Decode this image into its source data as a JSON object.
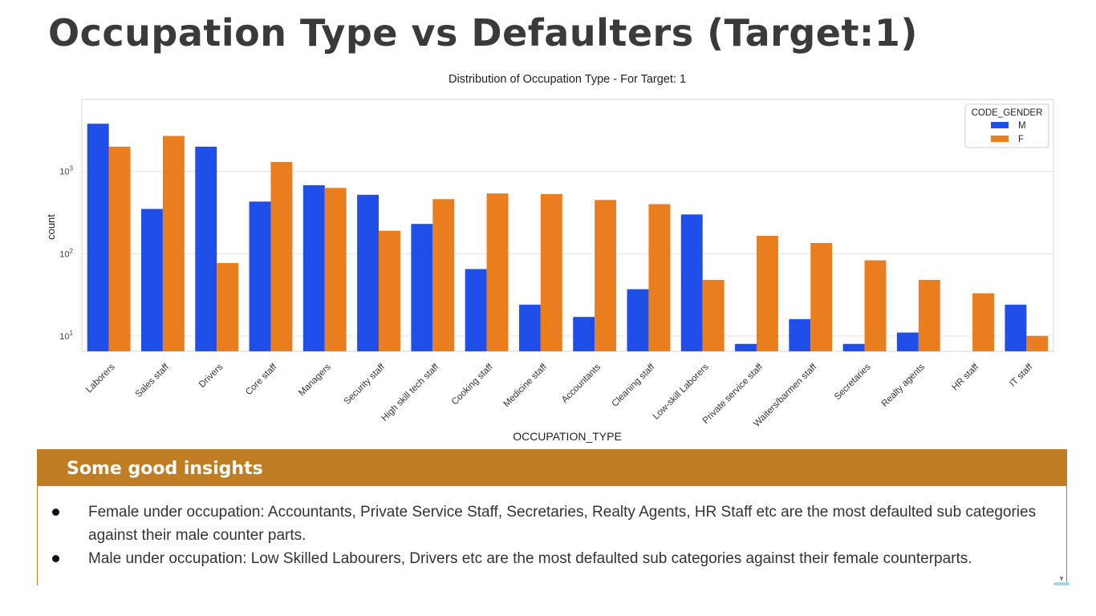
{
  "slide": {
    "title": "Occupation Type vs Defaulters (Target:1)"
  },
  "colors": {
    "male": "#1f4ee8",
    "female": "#ea7d1e",
    "insights_header": "#c17d24"
  },
  "chart_data": {
    "type": "bar",
    "title": "Distribution of Occupation Type - For Target: 1",
    "xlabel": "OCCUPATION_TYPE",
    "ylabel": "count",
    "yscale": "log",
    "ylim": [
      6.5,
      7500
    ],
    "yticks": [
      {
        "value": 10,
        "base": "10",
        "exp": "1"
      },
      {
        "value": 100,
        "base": "10",
        "exp": "2"
      },
      {
        "value": 1000,
        "base": "10",
        "exp": "3"
      }
    ],
    "grid": true,
    "legend": {
      "title": "CODE_GENDER",
      "position": "top-right"
    },
    "categories": [
      "Laborers",
      "Sales staff",
      "Drivers",
      "Core staff",
      "Managers",
      "Security staff",
      "High skill tech staff",
      "Cooking staff",
      "Medicine staff",
      "Accountants",
      "Cleaning staff",
      "Low-skill Laborers",
      "Private service staff",
      "Waiters/barmen staff",
      "Secretaries",
      "Realty agents",
      "HR staff",
      "IT staff"
    ],
    "series": [
      {
        "name": "M",
        "values": [
          3800,
          350,
          2000,
          430,
          680,
          520,
          230,
          65,
          24,
          17,
          37,
          300,
          8,
          16,
          8,
          11,
          null,
          24
        ]
      },
      {
        "name": "F",
        "values": [
          2000,
          2700,
          77,
          1300,
          630,
          190,
          460,
          540,
          530,
          450,
          400,
          48,
          165,
          135,
          83,
          48,
          33,
          10
        ]
      }
    ]
  },
  "insights": {
    "header": "Some good insights",
    "items": [
      "Female under occupation: Accountants, Private Service Staff, Secretaries, Realty Agents, HR Staff etc are the most defaulted sub categories against their male counter parts.",
      "Male under occupation: Low Skilled Labourers, Drivers etc are the most defaulted sub categories against their female counterparts."
    ]
  }
}
